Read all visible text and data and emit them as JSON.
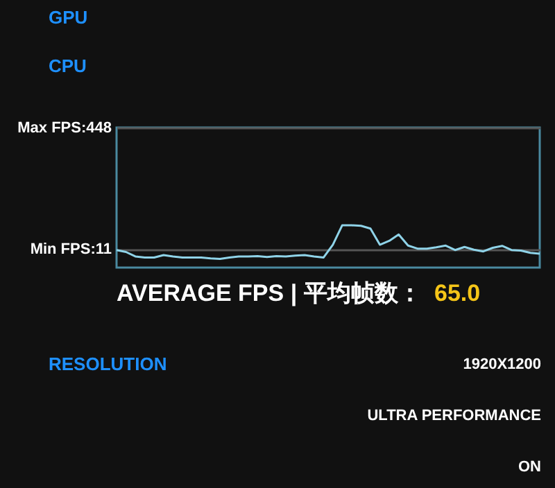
{
  "chart_data": {
    "type": "line",
    "categories": [
      null,
      null,
      null,
      null,
      null,
      null,
      null,
      null,
      null,
      null,
      null,
      null,
      null,
      null,
      null,
      null,
      null,
      null,
      null,
      null,
      null,
      null,
      null,
      null,
      null,
      null,
      null,
      null,
      null,
      null,
      null,
      null,
      null,
      null,
      null,
      null,
      null,
      null,
      null,
      null,
      null,
      null,
      null,
      null,
      null,
      null
    ],
    "series": [
      {
        "color": "#8fd3e8",
        "values": [
          8,
          1,
          -15,
          -19,
          -19,
          -10,
          -15,
          -19,
          -19,
          -19,
          -22,
          -24,
          -19,
          -15,
          -15,
          -14,
          -17,
          -14,
          -15,
          -12,
          -10,
          -15,
          -19,
          27,
          97,
          97,
          95,
          85,
          27,
          41,
          64,
          24,
          13,
          13,
          18,
          24,
          8,
          19,
          9,
          3,
          16,
          23,
          8,
          6,
          -2,
          -5
        ]
      }
    ],
    "ylim": [
      -55,
      448
    ],
    "yticks": [
      {
        "value": 448,
        "label": "Max FPS:448"
      },
      {
        "value": 11,
        "label": "Min FPS:11"
      }
    ],
    "tick_labels": "y",
    "grid": "y",
    "legend": false,
    "marker": "none",
    "line_style": "solid",
    "annotations": [
      "GPU",
      "CPU",
      "AVERAGE FPS | 平均帧数：",
      "65.0",
      "RESOLUTION",
      "1920X1200",
      "ULTRA PERFORMANCE",
      "ON"
    ]
  }
}
